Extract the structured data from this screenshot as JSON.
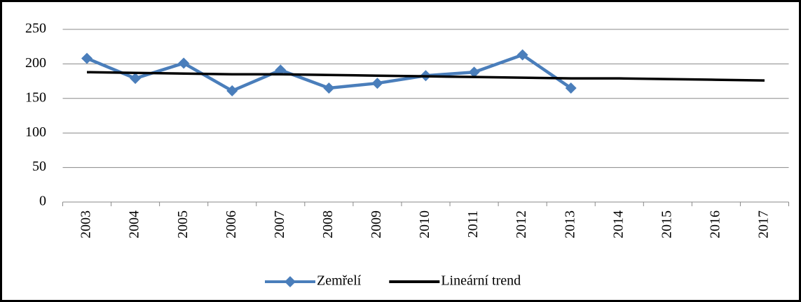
{
  "chart_data": {
    "type": "line",
    "categories": [
      "2003",
      "2004",
      "2005",
      "2006",
      "2007",
      "2008",
      "2009",
      "2010",
      "2011",
      "2012",
      "2013",
      "2014",
      "2015",
      "2016",
      "2017"
    ],
    "series": [
      {
        "name": "Zemřelí",
        "color": "#4a7ebb",
        "marker": "diamond",
        "values": [
          208,
          179,
          201,
          161,
          191,
          165,
          172,
          183,
          188,
          213,
          165,
          null,
          null,
          null,
          null
        ]
      },
      {
        "name": "Lineární trend",
        "color": "#000000",
        "values": [
          188,
          187,
          186,
          185,
          185,
          184,
          183,
          182,
          181,
          180,
          179,
          179,
          178,
          177,
          176
        ]
      }
    ],
    "ylim": [
      0,
      250
    ],
    "yticks": [
      0,
      50,
      100,
      150,
      200,
      250
    ],
    "grid": true,
    "legend": "bottom"
  }
}
